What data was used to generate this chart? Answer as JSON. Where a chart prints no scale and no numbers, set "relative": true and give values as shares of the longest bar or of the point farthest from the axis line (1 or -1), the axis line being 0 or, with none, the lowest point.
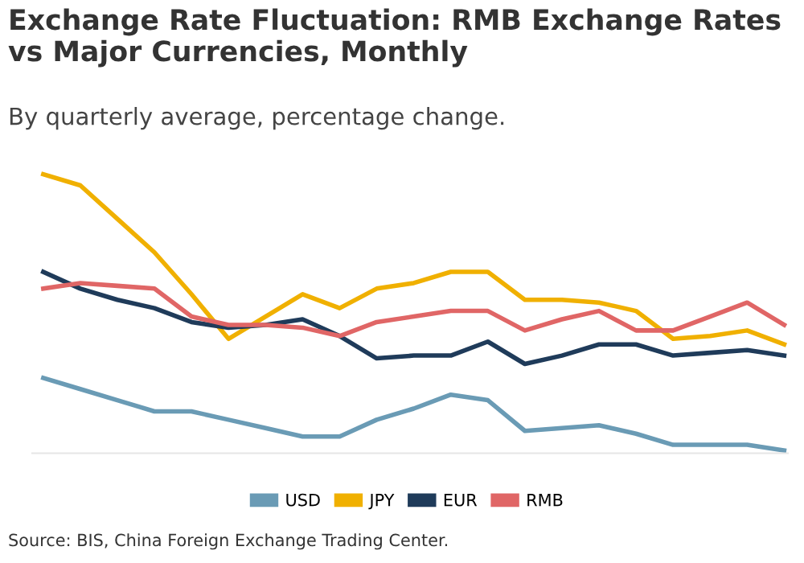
{
  "chart_data": {
    "type": "line",
    "title": "Exchange Rate Fluctuation: RMB Exchange Rates vs Major Currencies, Monthly",
    "subtitle": "By quarterly average, percentage change.",
    "annotations": [
      "Source: BIS, China Foreign Exchange Trading Center."
    ],
    "relative": true,
    "legend": "bottom",
    "grid": false,
    "categories": [
      null,
      null,
      null,
      null,
      null,
      null,
      null,
      null,
      null,
      null,
      null,
      null,
      null,
      null,
      null,
      null,
      null,
      null,
      null,
      null,
      null
    ],
    "series": [
      {
        "name": "USD",
        "color": "#6a9bb5",
        "values": [
          0.27,
          0.23,
          0.19,
          0.15,
          0.15,
          0.12,
          0.09,
          0.06,
          0.06,
          0.12,
          0.16,
          0.21,
          0.19,
          0.08,
          0.09,
          0.1,
          0.07,
          0.03,
          0.03,
          0.03,
          0.01
        ]
      },
      {
        "name": "JPY",
        "color": "#f0b000",
        "values": [
          1.0,
          0.96,
          0.84,
          0.72,
          0.57,
          0.41,
          0.49,
          0.57,
          0.52,
          0.59,
          0.61,
          0.65,
          0.65,
          0.55,
          0.55,
          0.54,
          0.51,
          0.41,
          0.42,
          0.44,
          0.39
        ]
      },
      {
        "name": "EUR",
        "color": "#1f3b5a",
        "values": [
          0.65,
          0.59,
          0.55,
          0.52,
          0.47,
          0.45,
          0.46,
          0.48,
          0.42,
          0.34,
          0.35,
          0.35,
          0.4,
          0.32,
          0.35,
          0.39,
          0.39,
          0.35,
          0.36,
          0.37,
          0.35
        ]
      },
      {
        "name": "RMB",
        "color": "#e06666",
        "values": [
          0.59,
          0.61,
          0.6,
          0.59,
          0.49,
          0.46,
          0.46,
          0.45,
          0.42,
          0.47,
          0.49,
          0.51,
          0.51,
          0.44,
          0.48,
          0.51,
          0.44,
          0.44,
          0.49,
          0.54,
          0.46
        ]
      }
    ]
  }
}
